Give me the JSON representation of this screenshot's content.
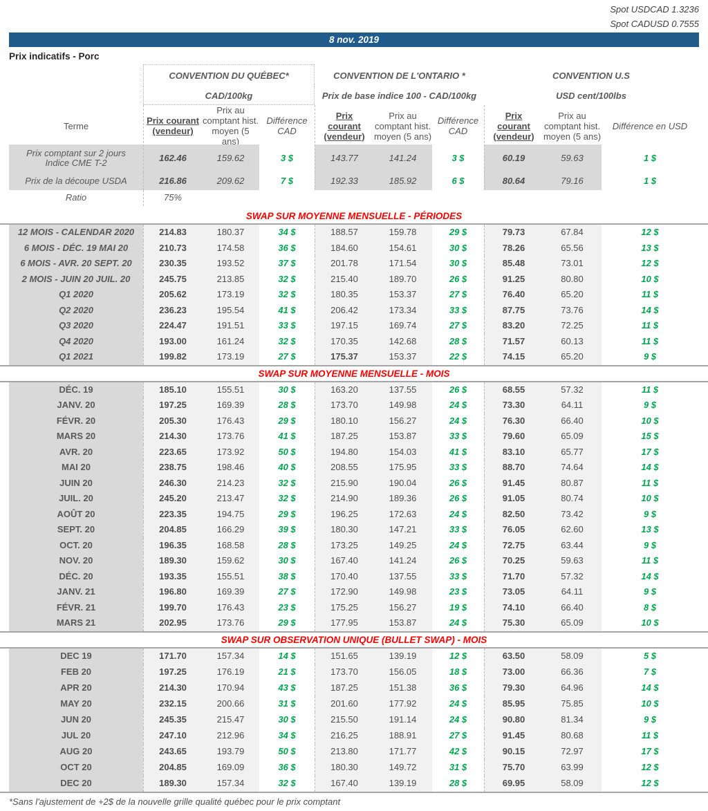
{
  "meta": {
    "spot_usdcad": "Spot USDCAD 1.3236",
    "spot_cadusd": "Spot CADUSD 0.7555",
    "date": "8 nov. 2019",
    "page_title": "Prix indicatifs - Porc",
    "footnote": "*Sans l'ajustement de +2$ de la nouvelle grille qualité québec pour le prix comptant"
  },
  "colors": {
    "header_blue": "#1f5c8c",
    "section_red": "#ff0000",
    "diff_green": "#00a64f",
    "terme_bg": "#d9d9d9",
    "data_bg": "#f1f1f1",
    "text_gray": "#595959"
  },
  "header": {
    "terme_label": "Terme",
    "conventions": {
      "quebec": {
        "title": "CONVENTION DU QUÉBEC*",
        "unit": "CAD/100kg",
        "col_courant": "Prix courant (vendeur)",
        "col_comptant": "Prix au comptant hist. moyen (5 ans)",
        "col_diff": "Différence CAD"
      },
      "ontario": {
        "title": "CONVENTION DE L'ONTARIO *",
        "unit": "Prix de base indice 100 - CAD/100kg",
        "col_courant": "Prix courant (vendeur)",
        "col_comptant": "Prix au comptant hist. moyen (5 ans)",
        "col_diff": "Différence CAD"
      },
      "us": {
        "title": "CONVENTION U.S",
        "unit": "USD cent/100lbs",
        "col_courant": "Prix courant (vendeur)",
        "col_comptant": "Prix au comptant hist. moyen (5 ans)",
        "col_diff": "Différence en USD"
      }
    }
  },
  "spot_rows": [
    {
      "terme": "Prix comptant sur 2 jours\nIndice CME T-2",
      "cells": [
        "162.46",
        "159.62",
        "3 $",
        "143.77",
        "141.24",
        "3 $",
        "60.19",
        "59.63",
        "1 $"
      ]
    },
    {
      "terme": "Prix de la découpe USDA",
      "cells": [
        "216.86",
        "209.62",
        "7 $",
        "192.33",
        "185.92",
        "6 $",
        "80.64",
        "79.16",
        "1 $"
      ]
    }
  ],
  "ratio_row": {
    "label": "Ratio",
    "value": "75%"
  },
  "sections": [
    {
      "id": "periodes",
      "title": "SWAP SUR MOYENNE MENSUELLE - PÉRIODES",
      "rows": [
        {
          "terme": "12 MOIS - CALENDAR 2020",
          "cells": [
            "214.83",
            "180.37",
            "34 $",
            "188.57",
            "159.78",
            "29 $",
            "79.73",
            "67.84",
            "12 $"
          ]
        },
        {
          "terme": "6 MOIS -  DÉC. 19 MAI 20",
          "cells": [
            "210.73",
            "174.58",
            "36 $",
            "184.60",
            "154.61",
            "30 $",
            "78.26",
            "65.56",
            "13 $"
          ]
        },
        {
          "terme": "6 MOIS -  AVR. 20 SEPT. 20",
          "cells": [
            "230.35",
            "193.52",
            "37 $",
            "201.78",
            "171.54",
            "30 $",
            "85.48",
            "73.01",
            "12 $"
          ]
        },
        {
          "terme": "2 MOIS -  JUIN 20  JUIL. 20",
          "cells": [
            "245.75",
            "213.85",
            "32 $",
            "215.40",
            "189.70",
            "26 $",
            "91.25",
            "80.80",
            "10 $"
          ]
        },
        {
          "terme": "Q1 2020",
          "cells": [
            "205.62",
            "173.19",
            "32 $",
            "180.35",
            "153.37",
            "27 $",
            "76.40",
            "65.20",
            "11 $"
          ]
        },
        {
          "terme": "Q2 2020",
          "cells": [
            "236.23",
            "195.54",
            "41 $",
            "206.42",
            "173.34",
            "33 $",
            "87.75",
            "73.76",
            "14 $"
          ]
        },
        {
          "terme": "Q3 2020",
          "cells": [
            "224.47",
            "191.51",
            "33 $",
            "197.15",
            "169.74",
            "27 $",
            "83.20",
            "72.25",
            "11 $"
          ]
        },
        {
          "terme": "Q4 2020",
          "cells": [
            "193.00",
            "161.24",
            "32 $",
            "170.35",
            "142.68",
            "28 $",
            "71.57",
            "60.13",
            "11 $"
          ]
        },
        {
          "terme": "Q1 2021",
          "on_bold": true,
          "cells": [
            "199.82",
            "173.19",
            "27 $",
            "175.37",
            "153.37",
            "22 $",
            "74.15",
            "65.20",
            "9 $"
          ]
        }
      ]
    },
    {
      "id": "mois",
      "title": "SWAP SUR MOYENNE MENSUELLE - MOIS",
      "rows": [
        {
          "terme": "DÉC. 19",
          "cells": [
            "185.10",
            "155.51",
            "30 $",
            "163.20",
            "137.55",
            "26 $",
            "68.55",
            "57.32",
            "11 $"
          ]
        },
        {
          "terme": "JANV. 20",
          "cells": [
            "197.25",
            "169.39",
            "28 $",
            "173.70",
            "149.98",
            "24 $",
            "73.30",
            "64.11",
            "9 $"
          ]
        },
        {
          "terme": "FÉVR. 20",
          "cells": [
            "205.30",
            "176.43",
            "29 $",
            "180.10",
            "156.27",
            "24 $",
            "76.30",
            "66.40",
            "10 $"
          ]
        },
        {
          "terme": "MARS 20",
          "cells": [
            "214.30",
            "173.76",
            "41 $",
            "187.25",
            "153.87",
            "33 $",
            "79.60",
            "65.09",
            "15 $"
          ]
        },
        {
          "terme": "AVR. 20",
          "cells": [
            "223.65",
            "173.92",
            "50 $",
            "194.80",
            "154.03",
            "41 $",
            "83.10",
            "65.77",
            "17 $"
          ]
        },
        {
          "terme": "MAI 20",
          "cells": [
            "238.75",
            "198.46",
            "40 $",
            "208.55",
            "175.95",
            "33 $",
            "88.70",
            "74.64",
            "14 $"
          ]
        },
        {
          "terme": "JUIN 20",
          "cells": [
            "246.30",
            "214.23",
            "32 $",
            "215.90",
            "190.04",
            "26 $",
            "91.45",
            "80.87",
            "11 $"
          ]
        },
        {
          "terme": "JUIL. 20",
          "cells": [
            "245.20",
            "213.47",
            "32 $",
            "214.90",
            "189.36",
            "26 $",
            "91.05",
            "80.74",
            "10 $"
          ]
        },
        {
          "terme": "AOÛT 20",
          "cells": [
            "223.35",
            "194.75",
            "29 $",
            "196.25",
            "172.63",
            "24 $",
            "82.50",
            "73.42",
            "9 $"
          ]
        },
        {
          "terme": "SEPT. 20",
          "cells": [
            "204.85",
            "166.29",
            "39 $",
            "180.30",
            "147.21",
            "33 $",
            "76.05",
            "62.60",
            "13 $"
          ]
        },
        {
          "terme": "OCT. 20",
          "cells": [
            "196.35",
            "168.58",
            "28 $",
            "173.25",
            "149.25",
            "24 $",
            "72.75",
            "63.44",
            "9 $"
          ]
        },
        {
          "terme": "NOV. 20",
          "cells": [
            "189.30",
            "159.62",
            "30 $",
            "167.40",
            "141.24",
            "26 $",
            "70.25",
            "59.63",
            "11 $"
          ]
        },
        {
          "terme": "DÉC. 20",
          "cells": [
            "193.35",
            "155.51",
            "38 $",
            "170.40",
            "137.55",
            "33 $",
            "71.70",
            "57.32",
            "14 $"
          ]
        },
        {
          "terme": "JANV. 21",
          "cells": [
            "196.80",
            "169.39",
            "27 $",
            "172.90",
            "149.98",
            "23 $",
            "73.05",
            "64.11",
            "9 $"
          ]
        },
        {
          "terme": "FÉVR. 21",
          "cells": [
            "199.70",
            "176.43",
            "23 $",
            "175.25",
            "156.27",
            "19 $",
            "74.10",
            "66.40",
            "8 $"
          ]
        },
        {
          "terme": "MARS 21",
          "cells": [
            "202.95",
            "173.76",
            "29 $",
            "177.95",
            "153.87",
            "24 $",
            "75.30",
            "65.09",
            "10 $"
          ]
        }
      ]
    },
    {
      "id": "bullet",
      "title": "SWAP SUR OBSERVATION UNIQUE (BULLET SWAP) - MOIS",
      "rows": [
        {
          "terme": "DEC 19",
          "cells": [
            "171.70",
            "157.34",
            "14 $",
            "151.65",
            "139.19",
            "12 $",
            "63.50",
            "58.09",
            "5 $"
          ]
        },
        {
          "terme": "FEB 20",
          "cells": [
            "197.25",
            "176.19",
            "21 $",
            "173.70",
            "156.05",
            "18 $",
            "73.00",
            "66.36",
            "7 $"
          ]
        },
        {
          "terme": "APR 20",
          "cells": [
            "214.30",
            "170.94",
            "43 $",
            "187.25",
            "151.38",
            "36 $",
            "79.30",
            "64.96",
            "14 $"
          ]
        },
        {
          "terme": "MAY 20",
          "cells": [
            "232.15",
            "200.66",
            "31 $",
            "201.60",
            "177.92",
            "24 $",
            "85.95",
            "75.85",
            "10 $"
          ]
        },
        {
          "terme": "JUN 20",
          "cells": [
            "245.35",
            "215.47",
            "30 $",
            "215.50",
            "191.14",
            "24 $",
            "90.80",
            "81.34",
            "9 $"
          ]
        },
        {
          "terme": "JUL 20",
          "cells": [
            "247.10",
            "212.96",
            "34 $",
            "216.25",
            "188.91",
            "27 $",
            "91.45",
            "80.68",
            "11 $"
          ]
        },
        {
          "terme": "AUG 20",
          "cells": [
            "243.65",
            "193.79",
            "50 $",
            "213.80",
            "171.77",
            "42 $",
            "90.15",
            "72.97",
            "17 $"
          ]
        },
        {
          "terme": "OCT 20",
          "cells": [
            "204.85",
            "169.09",
            "36 $",
            "180.30",
            "149.72",
            "31 $",
            "75.70",
            "63.99",
            "12 $"
          ]
        },
        {
          "terme": "DEC 20",
          "cells": [
            "189.30",
            "157.34",
            "32 $",
            "167.40",
            "139.19",
            "28 $",
            "69.95",
            "58.09",
            "12 $"
          ]
        }
      ]
    }
  ]
}
